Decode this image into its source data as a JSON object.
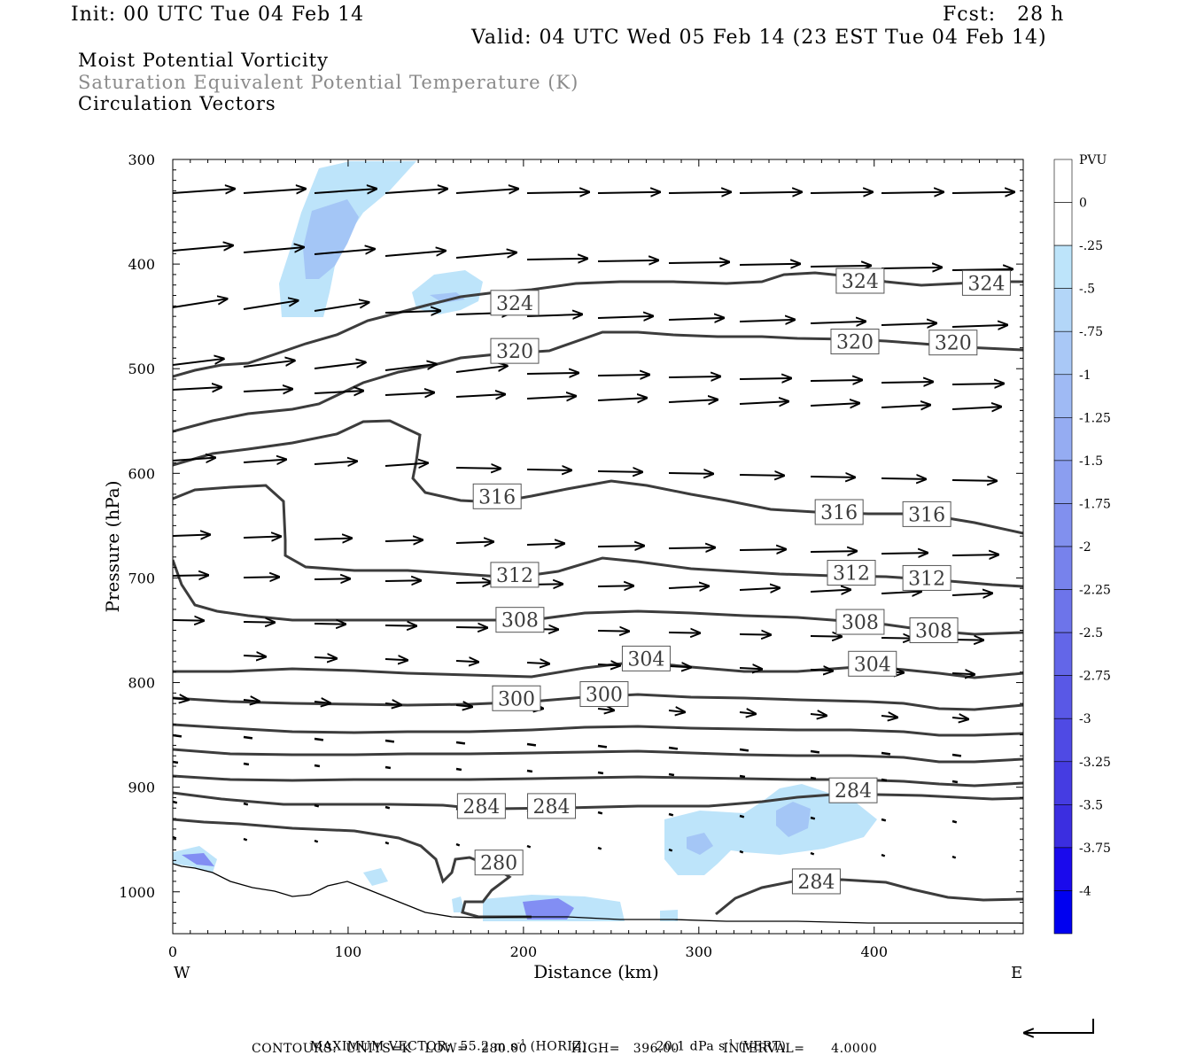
{
  "header": {
    "init": "Init: 00 UTC Tue 04 Feb 14",
    "fcst": "Fcst:   28 h",
    "valid": "Valid: 04 UTC Wed 05 Feb 14 (23 EST Tue 04 Feb 14)"
  },
  "fields": [
    "Moist Potential Vorticity",
    "Saturation Equivalent Potential Temperature (K)",
    "Circulation Vectors"
  ],
  "colors": {
    "contour": "#3c3c3c",
    "label_fill": "#ffffff",
    "shade_light": "#bde4fa",
    "shade_mid": "#a4c6f6",
    "shade_dark": "#6a6af0"
  },
  "chart_data": {
    "type": "cross-section",
    "xlabel": "Distance (km)",
    "ylabel": "Pressure (hPa)",
    "xlim": [
      0,
      485
    ],
    "ylim": [
      300,
      1040
    ],
    "x_ticks": [
      "0",
      "100",
      "200",
      "300",
      "400"
    ],
    "y_ticks": [
      "300",
      "400",
      "500",
      "600",
      "700",
      "800",
      "900",
      "1000"
    ],
    "x_end_labels": {
      "left": "W",
      "right": "E"
    },
    "colorbar": {
      "unit": "PVU",
      "labels": [
        "0",
        "-.25",
        "-.5",
        "-.75",
        "-1",
        "-1.25",
        "-1.5",
        "-1.75",
        "-2",
        "-2.25",
        "-2.5",
        "-2.75",
        "-3",
        "-3.25",
        "-3.5",
        "-3.75",
        "-4"
      ],
      "colors": [
        "#ffffff",
        "#ffffff",
        "#bde4fa",
        "#b3d6f8",
        "#a9c8f6",
        "#9fbaf4",
        "#95acf2",
        "#8b9ef0",
        "#8190ee",
        "#7782ec",
        "#6d74ea",
        "#6366e8",
        "#5958e6",
        "#4f4ae4",
        "#453ce2",
        "#3b2ee0",
        "#1a0aec",
        "#0000f0"
      ]
    },
    "contour_labels": [
      {
        "text": "324",
        "x": 195,
        "p": 437
      },
      {
        "text": "324",
        "x": 392,
        "p": 416
      },
      {
        "text": "324",
        "x": 464,
        "p": 418
      },
      {
        "text": "320",
        "x": 195,
        "p": 483
      },
      {
        "text": "320",
        "x": 389,
        "p": 474
      },
      {
        "text": "320",
        "x": 445,
        "p": 475
      },
      {
        "text": "316",
        "x": 185,
        "p": 622
      },
      {
        "text": "316",
        "x": 380,
        "p": 637
      },
      {
        "text": "316",
        "x": 430,
        "p": 639
      },
      {
        "text": "312",
        "x": 195,
        "p": 697
      },
      {
        "text": "312",
        "x": 387,
        "p": 695
      },
      {
        "text": "312",
        "x": 430,
        "p": 700
      },
      {
        "text": "308",
        "x": 198,
        "p": 740
      },
      {
        "text": "308",
        "x": 392,
        "p": 742
      },
      {
        "text": "308",
        "x": 434,
        "p": 750
      },
      {
        "text": "304",
        "x": 270,
        "p": 777
      },
      {
        "text": "304",
        "x": 399,
        "p": 782
      },
      {
        "text": "300",
        "x": 196,
        "p": 815
      },
      {
        "text": "300",
        "x": 246,
        "p": 811
      },
      {
        "text": "284",
        "x": 176,
        "p": 918
      },
      {
        "text": "284",
        "x": 216,
        "p": 918
      },
      {
        "text": "284",
        "x": 388,
        "p": 903
      },
      {
        "text": "280",
        "x": 186,
        "p": 972
      },
      {
        "text": "284",
        "x": 367,
        "p": 990
      }
    ],
    "max_vector_horiz": "55.2",
    "max_vector_vert": "20.1",
    "contour_units": "K",
    "contour_low": "280.00",
    "contour_high": "396.00",
    "contour_interval": "4.0000"
  },
  "footer": {
    "line1_a": "MAXIMUM VECTOR:  55.2 m s",
    "line1_b": "(HORIZ)",
    "line1_c": "20.1 dPa s",
    "line1_d": "(VERT)",
    "sup": "-1",
    "line2": "CONTOURS:  UNITS=K   LOW=   280.00          HIGH=   396.00          INTERVAL=      4.0000"
  }
}
